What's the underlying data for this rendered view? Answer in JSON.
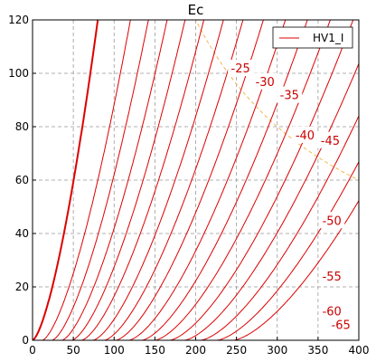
{
  "chart_data": {
    "type": "line",
    "title": "Ec",
    "xlabel": "",
    "ylabel": "",
    "xlim": [
      0,
      400
    ],
    "ylim": [
      0,
      120
    ],
    "xticks": [
      0,
      50,
      100,
      150,
      200,
      250,
      300,
      350,
      400
    ],
    "yticks": [
      0,
      20,
      40,
      60,
      80,
      100,
      120
    ],
    "grid": true,
    "legend": {
      "placement": "top-right",
      "entries": [
        "HV1_I"
      ]
    },
    "colors": {
      "curves": "#dd0000",
      "dissipation": "#f0b040",
      "grid": "#999999"
    },
    "exponent": 1.5,
    "bold_curve": {
      "x0": 0,
      "x_at_120": 80
    },
    "curves": [
      {
        "x0": 12,
        "x_at_120": 120
      },
      {
        "x0": 24,
        "x_at_120": 142
      },
      {
        "x0": 36,
        "x_at_120": 165
      },
      {
        "x0": 48,
        "x_at_120": 187
      },
      {
        "x0": 60,
        "x_at_120": 210
      },
      {
        "label": "-25",
        "x0": 74,
        "x_at_120": 234
      },
      {
        "label": "-30",
        "x0": 88,
        "x_at_120": 258
      },
      {
        "label": "-35",
        "x0": 102,
        "x_at_120": 283
      },
      {
        "label": "-40",
        "x0": 118,
        "x_at_120": 310
      },
      {
        "label": "-45",
        "x0": 134,
        "x_at_120": 337
      },
      {
        "x0": 150,
        "x_at_120": 365
      },
      {
        "label": "-50",
        "x0": 168,
        "x_at_120": 393
      },
      {
        "x0": 186,
        "x_at_120": 422
      },
      {
        "label": "-55",
        "x0": 206,
        "x_at_120": 452
      },
      {
        "label": "-60",
        "x0": 226,
        "x_at_120": 483
      },
      {
        "label": "-65",
        "x0": 246,
        "x_at_120": 514
      }
    ],
    "curve_labels": [
      {
        "text": "-25",
        "x": 255,
        "y": 102
      },
      {
        "text": "-30",
        "x": 285,
        "y": 97
      },
      {
        "text": "-35",
        "x": 315,
        "y": 92
      },
      {
        "text": "-40",
        "x": 334,
        "y": 77
      },
      {
        "text": "-45",
        "x": 365,
        "y": 75
      },
      {
        "text": "-50",
        "x": 367,
        "y": 45
      },
      {
        "text": "-55",
        "x": 367,
        "y": 24
      },
      {
        "text": "-60",
        "x": 367,
        "y": 11
      },
      {
        "text": "-65",
        "x": 378,
        "y": 6
      }
    ],
    "dissipation_curve_power": 24000,
    "series": [
      {
        "name": "HV1_I"
      }
    ]
  }
}
